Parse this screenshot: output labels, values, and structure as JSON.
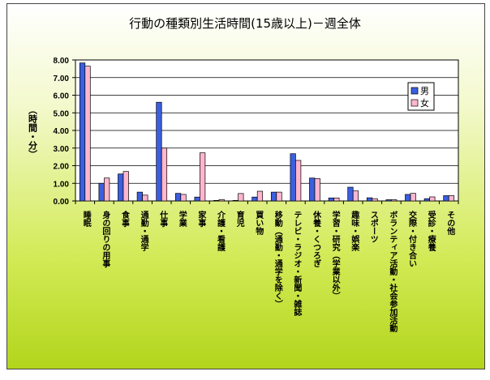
{
  "chart_data": {
    "type": "bar",
    "title": "行動の種類別生活時間(15歳以上)－週全体",
    "ylabel": "（時間・分）",
    "ylim": [
      0,
      8
    ],
    "yticks": [
      "0.00",
      "1.00",
      "2.00",
      "3.00",
      "4.00",
      "5.00",
      "6.00",
      "7.00",
      "8.00"
    ],
    "grid": true,
    "legend_position": "right",
    "categories": [
      "睡眠",
      "身の回りの用事",
      "食事",
      "通勤・通学",
      "仕事",
      "学業",
      "家事",
      "介護・看護",
      "育児",
      "買い物",
      "移動（通勤・通学を除く）",
      "テレビ・ラジオ・新聞・雑誌",
      "休養・くつろぎ",
      "学習・研究（学業以外）",
      "趣味・娯楽",
      "スポーツ",
      "ボランティア活動・社会参加活動",
      "交際・付き合い",
      "受診・療養",
      "その他"
    ],
    "series": [
      {
        "name": "男",
        "color": "#3b5fe0",
        "values": [
          7.83,
          1.0,
          1.53,
          0.5,
          5.6,
          0.43,
          0.22,
          0.03,
          0.03,
          0.22,
          0.5,
          2.68,
          1.3,
          0.17,
          0.78,
          0.18,
          0.07,
          0.37,
          0.13,
          0.3
        ]
      },
      {
        "name": "女",
        "color": "#ffb6cf",
        "values": [
          7.65,
          1.3,
          1.67,
          0.33,
          3.0,
          0.37,
          2.73,
          0.08,
          0.42,
          0.55,
          0.5,
          2.3,
          1.27,
          0.17,
          0.57,
          0.13,
          0.07,
          0.43,
          0.23,
          0.3
        ]
      }
    ]
  }
}
